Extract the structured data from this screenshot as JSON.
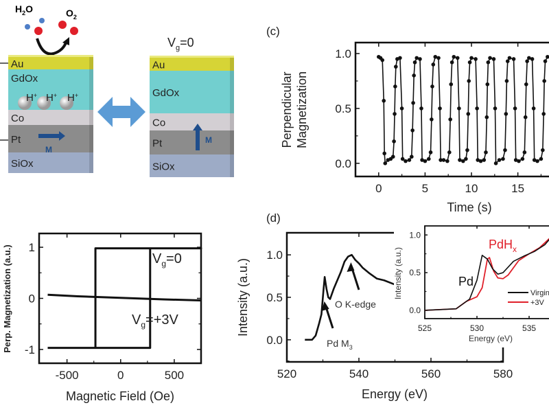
{
  "diagram": {
    "molecule_left": {
      "main": "H",
      "sub": "2",
      "rest": "O"
    },
    "molecule_right": {
      "main": "O",
      "sub": "2",
      "rest": ""
    },
    "gate_label": {
      "main": "V",
      "sub": "g",
      "rest": "=0"
    },
    "layers": [
      "Au",
      "GdOx",
      "Co",
      "Pt",
      "SiOx"
    ],
    "proton": {
      "main": "H",
      "sup": "+"
    },
    "magnetization_label": "M",
    "colors": {
      "Au": "#d6d436",
      "GdOx": "#72cfcf",
      "Co": "#d3cfd3",
      "Pt": "#8c8c8c",
      "SiOx": "#9dabc6",
      "arrow": "#5b9bd5",
      "M": "#1f4e8c",
      "H2O_H": "#4f7fc8",
      "O": "#e0202a"
    }
  },
  "panels": {
    "c": "(c)",
    "d": "(d)"
  },
  "chart_data": [
    {
      "id": "hysteresis",
      "type": "line",
      "xlabel": "Magnetic Field (Oe)",
      "ylabel": "Perp. Magnetization (a.u.)",
      "xlim": [
        -760,
        750
      ],
      "ylim": [
        -1.27,
        1.27
      ],
      "xticks": [
        -500,
        0,
        500
      ],
      "yticks": [
        -1,
        0,
        1
      ],
      "series": [
        {
          "name": {
            "main": "V",
            "sub": "g",
            "rest": "=0"
          },
          "points": [
            [
              -680,
              -0.97
            ],
            [
              275,
              -0.97
            ],
            [
              275,
              0.98
            ],
            [
              750,
              0.98
            ],
            [
              -235,
              0.98
            ],
            [
              -235,
              -0.97
            ]
          ]
        },
        {
          "name": {
            "main": "V",
            "sub": "g",
            "rest": "=+3V"
          },
          "points": [
            [
              -680,
              0.07
            ],
            [
              -400,
              0.04
            ],
            [
              0,
              0.01
            ],
            [
              400,
              -0.02
            ],
            [
              750,
              -0.04
            ]
          ]
        }
      ]
    },
    {
      "id": "time-switching",
      "type": "line",
      "xlabel": "Time (s)",
      "ylabel": [
        "Perpendicular",
        "Magnetization"
      ],
      "xlim": [
        -2.5,
        18.8
      ],
      "ylim": [
        -0.12,
        1.1
      ],
      "xticks": [
        0,
        5,
        10,
        15
      ],
      "yticks": [
        0.0,
        0.5,
        1.0
      ],
      "ytick_labels": [
        "0.0",
        "0.5",
        "1.0"
      ],
      "points": [
        [
          0,
          0.97
        ],
        [
          0.2,
          0.96
        ],
        [
          0.4,
          0.94
        ],
        [
          0.55,
          0.57
        ],
        [
          0.62,
          0.09
        ],
        [
          0.7,
          0.0
        ],
        [
          1.0,
          0.03
        ],
        [
          1.3,
          0.04
        ],
        [
          1.55,
          0.06
        ],
        [
          1.65,
          0.2
        ],
        [
          1.72,
          0.45
        ],
        [
          1.78,
          0.7
        ],
        [
          1.85,
          0.88
        ],
        [
          2.0,
          0.95
        ],
        [
          2.3,
          0.96
        ],
        [
          2.5,
          0.5
        ],
        [
          2.58,
          0.04
        ],
        [
          2.9,
          0.02
        ],
        [
          3.3,
          0.03
        ],
        [
          3.55,
          0.06
        ],
        [
          3.65,
          0.3
        ],
        [
          3.72,
          0.55
        ],
        [
          3.8,
          0.8
        ],
        [
          3.9,
          0.92
        ],
        [
          4.1,
          0.96
        ],
        [
          4.45,
          0.95
        ],
        [
          4.6,
          0.5
        ],
        [
          4.68,
          0.03
        ],
        [
          5.0,
          0.02
        ],
        [
          5.4,
          0.04
        ],
        [
          5.6,
          0.1
        ],
        [
          5.7,
          0.4
        ],
        [
          5.78,
          0.7
        ],
        [
          5.88,
          0.9
        ],
        [
          6.1,
          0.97
        ],
        [
          6.45,
          0.96
        ],
        [
          6.6,
          0.5
        ],
        [
          6.68,
          0.03
        ],
        [
          7.0,
          0.03
        ],
        [
          7.4,
          0.02
        ],
        [
          7.62,
          0.1
        ],
        [
          7.72,
          0.4
        ],
        [
          7.8,
          0.72
        ],
        [
          7.9,
          0.92
        ],
        [
          8.1,
          0.97
        ],
        [
          8.5,
          0.96
        ],
        [
          8.66,
          0.5
        ],
        [
          8.74,
          0.03
        ],
        [
          9.1,
          0.02
        ],
        [
          9.4,
          0.04
        ],
        [
          9.55,
          0.12
        ],
        [
          9.65,
          0.45
        ],
        [
          9.72,
          0.75
        ],
        [
          9.82,
          0.92
        ],
        [
          10.0,
          0.96
        ],
        [
          10.45,
          0.95
        ],
        [
          10.6,
          0.5
        ],
        [
          10.68,
          0.03
        ],
        [
          11.0,
          0.02
        ],
        [
          11.35,
          0.03
        ],
        [
          11.55,
          0.1
        ],
        [
          11.65,
          0.42
        ],
        [
          11.72,
          0.72
        ],
        [
          11.8,
          0.92
        ],
        [
          12.0,
          0.96
        ],
        [
          12.4,
          0.95
        ],
        [
          12.55,
          0.5
        ],
        [
          12.63,
          0.0
        ],
        [
          13.0,
          0.03
        ],
        [
          13.4,
          0.04
        ],
        [
          13.62,
          0.12
        ],
        [
          13.72,
          0.45
        ],
        [
          13.8,
          0.75
        ],
        [
          13.9,
          0.93
        ],
        [
          14.1,
          0.96
        ],
        [
          14.55,
          0.95
        ],
        [
          14.7,
          0.5
        ],
        [
          14.78,
          0.03
        ],
        [
          15.1,
          0.02
        ],
        [
          15.5,
          0.04
        ],
        [
          15.72,
          0.1
        ],
        [
          15.82,
          0.42
        ],
        [
          15.9,
          0.72
        ],
        [
          16.0,
          0.93
        ],
        [
          16.2,
          0.96
        ],
        [
          16.55,
          0.95
        ],
        [
          16.7,
          0.5
        ],
        [
          16.78,
          0.03
        ],
        [
          17.1,
          0.02
        ],
        [
          17.5,
          0.04
        ],
        [
          17.68,
          0.12
        ],
        [
          17.78,
          0.45
        ],
        [
          17.85,
          0.75
        ],
        [
          17.95,
          0.93
        ],
        [
          18.2,
          0.97
        ],
        [
          18.55,
          0.96
        ],
        [
          18.7,
          0.42
        ],
        [
          18.78,
          0.03
        ]
      ]
    },
    {
      "id": "xas",
      "type": "line",
      "xlabel": "Energy (eV)",
      "ylabel": "Intensity (a.u.)",
      "xlim": [
        520,
        580
      ],
      "ylim": [
        -0.26,
        1.26
      ],
      "xticks": [
        520,
        540,
        560,
        580
      ],
      "yticks": [
        0.0,
        0.5,
        1.0
      ],
      "ytick_labels": [
        "0.0",
        "0.5",
        "1.0"
      ],
      "points": [
        [
          525,
          0
        ],
        [
          527,
          0
        ],
        [
          528,
          0.05
        ],
        [
          529,
          0.2
        ],
        [
          529.6,
          0.3
        ],
        [
          530.2,
          0.6
        ],
        [
          530.5,
          0.74
        ],
        [
          531,
          0.6
        ],
        [
          531.5,
          0.5
        ],
        [
          532,
          0.48
        ],
        [
          533,
          0.6
        ],
        [
          534,
          0.7
        ],
        [
          535,
          0.8
        ],
        [
          536,
          0.92
        ],
        [
          537,
          0.98
        ],
        [
          538,
          1.0
        ],
        [
          539,
          0.94
        ],
        [
          540,
          0.9
        ],
        [
          541,
          0.85
        ],
        [
          543,
          0.78
        ],
        [
          545,
          0.72
        ],
        [
          547,
          0.7
        ],
        [
          550,
          0.65
        ]
      ],
      "annotations": [
        {
          "text": "O K-edge",
          "arrow_to": [
            537.8,
            0.88
          ]
        },
        {
          "text_main": "Pd M",
          "text_sub": "3",
          "arrow_to": [
            530.6,
            0.42
          ]
        }
      ]
    },
    {
      "id": "xas-inset",
      "type": "line",
      "xlabel": "Energy (eV)",
      "ylabel": "Intensity (a.u.)",
      "xlim": [
        525,
        537.3
      ],
      "ylim": [
        -0.11,
        1.12
      ],
      "xticks": [
        525,
        530,
        535
      ],
      "yticks": [
        0.0,
        0.5,
        1.0
      ],
      "ytick_labels": [
        "0.0",
        "0.5",
        "1.0"
      ],
      "series": [
        {
          "name": "Virgin",
          "color": "#111111",
          "points": [
            [
              525,
              0
            ],
            [
              528,
              0.02
            ],
            [
              529.3,
              0.15
            ],
            [
              530,
              0.4
            ],
            [
              530.5,
              0.73
            ],
            [
              531,
              0.68
            ],
            [
              531.5,
              0.55
            ],
            [
              532,
              0.48
            ],
            [
              532.5,
              0.5
            ],
            [
              533.5,
              0.65
            ],
            [
              534.5,
              0.72
            ],
            [
              535.5,
              0.78
            ],
            [
              536.5,
              0.87
            ],
            [
              537,
              0.95
            ],
            [
              537.5,
              1.0
            ]
          ]
        },
        {
          "name": "+3V",
          "color": "#e0202a",
          "points": [
            [
              525,
              0
            ],
            [
              528,
              0.02
            ],
            [
              529,
              0.12
            ],
            [
              530,
              0.18
            ],
            [
              530.5,
              0.3
            ],
            [
              531,
              0.68
            ],
            [
              531.2,
              0.7
            ],
            [
              531.6,
              0.52
            ],
            [
              532,
              0.43
            ],
            [
              532.5,
              0.42
            ],
            [
              533,
              0.47
            ],
            [
              534,
              0.66
            ],
            [
              535,
              0.75
            ],
            [
              536,
              0.83
            ],
            [
              537,
              0.96
            ],
            [
              537.5,
              1.0
            ]
          ]
        }
      ],
      "curve_labels": [
        {
          "text": "Pd",
          "color": "#111111"
        },
        {
          "main": "PdH",
          "sub": "x",
          "color": "#e0202a"
        }
      ]
    }
  ]
}
